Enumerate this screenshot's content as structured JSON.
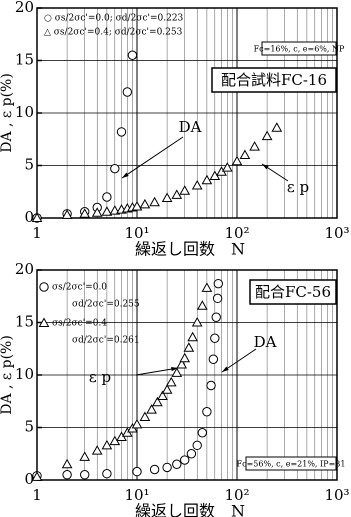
{
  "chart_data": [
    {
      "type": "scatter",
      "x_scale": "log",
      "minor_grid": true,
      "grid": true,
      "ylabel": "DA , ε p(%)",
      "xlabel": "繰返し回数　N",
      "xlim": [
        1,
        1000
      ],
      "ylim": [
        0,
        20
      ],
      "xticks": [
        {
          "value": 1,
          "label": "1"
        },
        {
          "value": 10,
          "label": "10¹"
        },
        {
          "value": 100,
          "label": "10²"
        },
        {
          "value": 1000,
          "label": "10³"
        }
      ],
      "yticks": [
        0,
        5,
        10,
        15,
        20
      ],
      "panel_label": "配合試料FC-16",
      "material_note": "Fc=16%, c, e=6%, NP",
      "annotations": [
        "DA",
        "ε p"
      ],
      "series": [
        {
          "name": [
            "○ σs/2σc'=0.0; σd/2σc'=0.223"
          ],
          "marker": "circle",
          "color": "#000000",
          "x": [
            1,
            2,
            3,
            4,
            5,
            6,
            7,
            8,
            9
          ],
          "values": [
            0,
            0.4,
            0.6,
            1.0,
            2.0,
            4.7,
            8.2,
            12,
            15.5
          ]
        },
        {
          "name": [
            "△ σs/2σc'=0.4; σd/2σc'=0.253"
          ],
          "marker": "triangle",
          "color": "#000000",
          "x": [
            1,
            2,
            3,
            4,
            5,
            6,
            7,
            8,
            9,
            10,
            12,
            15,
            20,
            25,
            30,
            40,
            50,
            60,
            70,
            80,
            100,
            120,
            150,
            200,
            250
          ],
          "values": [
            0,
            0.3,
            0.4,
            0.5,
            0.6,
            0.7,
            0.8,
            0.9,
            1.0,
            1.1,
            1.3,
            1.5,
            1.9,
            2.2,
            2.6,
            3.1,
            3.6,
            4.0,
            4.4,
            4.8,
            5.4,
            6.0,
            6.8,
            7.8,
            8.6
          ]
        }
      ]
    },
    {
      "type": "scatter",
      "x_scale": "log",
      "minor_grid": true,
      "grid": true,
      "ylabel": "DA , ε p(%)",
      "xlabel": "繰返し回数　N",
      "xlim": [
        1,
        1000
      ],
      "ylim": [
        0,
        20
      ],
      "xticks": [
        {
          "value": 1,
          "label": "1"
        },
        {
          "value": 10,
          "label": "10¹"
        },
        {
          "value": 100,
          "label": "10²"
        },
        {
          "value": 1000,
          "label": "10³"
        }
      ],
      "yticks": [
        0,
        5,
        10,
        15,
        20
      ],
      "panel_label": "配合FC-56",
      "material_note": "Fc=56%, c, e=21%, IP=31",
      "annotations": [
        "DA",
        "ε p"
      ],
      "series": [
        {
          "name": [
            "σs/2σc'=0.0",
            "σd/2σc'=0.255"
          ],
          "marker": "circle",
          "color": "#000000",
          "x": [
            1,
            2,
            3,
            5,
            10,
            15,
            20,
            25,
            30,
            35,
            40,
            45,
            50,
            55,
            58,
            60,
            62,
            64,
            65
          ],
          "values": [
            0.4,
            0.5,
            0.5,
            0.6,
            0.8,
            1.0,
            1.2,
            1.5,
            1.9,
            2.5,
            3.3,
            4.5,
            6.5,
            9,
            11.5,
            13.5,
            15.5,
            17.3,
            18.7
          ]
        },
        {
          "name": [
            "σs/2σc'=0.4",
            "σd/2σc'=0.261"
          ],
          "marker": "triangle",
          "color": "#000000",
          "x": [
            1,
            2,
            3,
            4,
            5,
            6,
            7,
            8,
            9,
            10,
            12,
            14,
            16,
            18,
            20,
            22,
            25,
            28,
            30,
            33,
            36,
            40,
            45,
            50
          ],
          "values": [
            0.3,
            1.5,
            2.2,
            2.8,
            3.3,
            3.7,
            4.1,
            4.5,
            4.9,
            5.3,
            6,
            6.7,
            7.4,
            8,
            8.6,
            9.3,
            10.2,
            11,
            11.6,
            12.6,
            13.6,
            15,
            16.6,
            18.3
          ]
        }
      ]
    }
  ]
}
